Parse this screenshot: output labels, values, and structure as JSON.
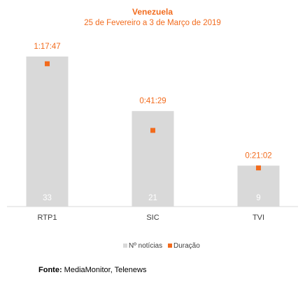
{
  "chart_data": {
    "type": "bar",
    "title": "Venezuela",
    "subtitle": "25 de Fevereiro a 3 de Março de 2019",
    "categories": [
      "RTP1",
      "SIC",
      "TVI"
    ],
    "series": [
      {
        "name": "Nº notícias",
        "color": "#d9d9d9",
        "values": [
          33,
          21,
          9
        ]
      },
      {
        "name": "Duração",
        "color": "#f26b1d",
        "axis": "y2",
        "values": [
          4667,
          2489,
          1262
        ],
        "value_labels": [
          "1:17:47",
          "0:41:29",
          "0:21:02"
        ]
      }
    ],
    "ylim": [
      0,
      35
    ],
    "y2lim": [
      0,
      5200
    ],
    "source_label": "Fonte:",
    "source": "MediaMonitor, Telenews"
  }
}
